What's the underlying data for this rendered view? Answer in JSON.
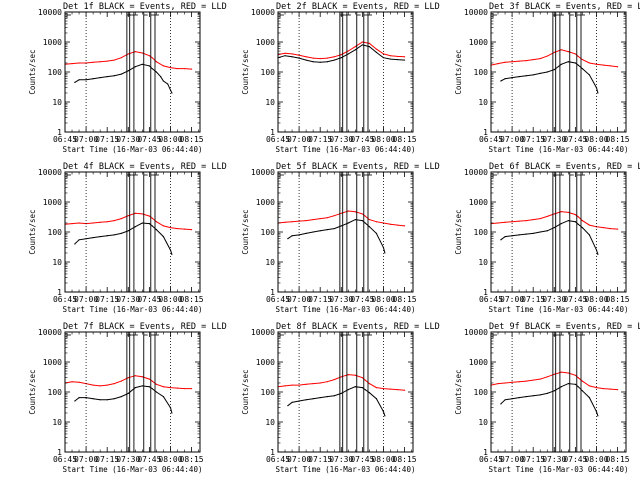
{
  "figure": {
    "xlabel": "Start Time (16-Mar-03 06:44:40)",
    "ylabel": "Counts/sec",
    "colors": {
      "events": "#000000",
      "lld": "#ff0000",
      "axes": "#000000"
    },
    "x_ticks": [
      "06:45",
      "07:00",
      "07:15",
      "07:30",
      "07:45",
      "08:00",
      "08:15"
    ],
    "y_ticks": [
      "1",
      "10",
      "100",
      "1000",
      "10000"
    ]
  },
  "chart_data": [
    {
      "type": "line",
      "panel": "Det 1f",
      "title": "Det 1f BLACK = Events, RED = LLD",
      "xlabel": "Start Time (16-Mar-03 06:44:40)",
      "ylabel": "Counts/sec",
      "xlim_min": [
        0,
        96
      ],
      "ylim": [
        1,
        10000
      ],
      "y_scale": "log",
      "series": [
        {
          "name": "Events",
          "color": "#000000",
          "x_min": [
            7,
            10,
            15,
            20,
            25,
            30,
            35,
            40,
            45,
            50,
            55,
            60,
            62,
            65,
            68,
            70,
            73,
            75,
            76
          ],
          "values": [
            45,
            55,
            55,
            60,
            65,
            70,
            75,
            85,
            110,
            150,
            180,
            160,
            130,
            100,
            70,
            50,
            40,
            25,
            20
          ]
        },
        {
          "name": "LLD",
          "color": "#ff0000",
          "x_min": [
            0,
            5,
            10,
            15,
            20,
            25,
            30,
            35,
            40,
            45,
            50,
            55,
            60,
            62,
            65,
            70,
            75,
            80,
            85,
            90
          ],
          "values": [
            180,
            190,
            200,
            200,
            210,
            220,
            230,
            250,
            300,
            400,
            480,
            430,
            350,
            300,
            220,
            160,
            140,
            130,
            130,
            125
          ]
        }
      ],
      "vlines_solid_min": [
        44,
        46,
        49,
        56,
        61,
        64
      ],
      "vlines_dotted_min": [
        15,
        75
      ]
    },
    {
      "type": "line",
      "panel": "Det 2f",
      "title": "Det 2f BLACK = Events, RED = LLD",
      "xlabel": "Start Time (16-Mar-03 06:44:40)",
      "ylabel": "Counts/sec",
      "xlim_min": [
        0,
        96
      ],
      "ylim": [
        1,
        10000
      ],
      "y_scale": "log",
      "series": [
        {
          "name": "Events",
          "color": "#000000",
          "x_min": [
            0,
            5,
            10,
            15,
            20,
            25,
            30,
            35,
            40,
            45,
            50,
            55,
            60,
            65,
            70,
            75,
            80,
            85,
            90
          ],
          "values": [
            300,
            350,
            320,
            290,
            250,
            220,
            210,
            220,
            250,
            300,
            400,
            550,
            800,
            700,
            450,
            300,
            270,
            260,
            250
          ]
        },
        {
          "name": "LLD",
          "color": "#ff0000",
          "x_min": [
            0,
            5,
            10,
            15,
            20,
            25,
            30,
            35,
            40,
            45,
            50,
            55,
            60,
            65,
            70,
            75,
            80,
            85,
            90
          ],
          "values": [
            380,
            420,
            400,
            360,
            320,
            290,
            280,
            290,
            320,
            380,
            500,
            700,
            1000,
            900,
            580,
            400,
            350,
            330,
            320
          ]
        }
      ],
      "vlines_solid_min": [
        44,
        46,
        49,
        56,
        61,
        64
      ],
      "vlines_dotted_min": [
        15,
        75
      ]
    },
    {
      "type": "line",
      "panel": "Det 3f",
      "title": "Det 3f BLACK = Events, RED = LLD",
      "xlabel": "Start Time (16-Mar-03 06:44:40)",
      "ylabel": "Counts/sec",
      "xlim_min": [
        0,
        96
      ],
      "ylim": [
        1,
        10000
      ],
      "y_scale": "log",
      "series": [
        {
          "name": "Events",
          "color": "#000000",
          "x_min": [
            7,
            10,
            15,
            20,
            25,
            30,
            35,
            40,
            45,
            50,
            55,
            60,
            62,
            65,
            70,
            75,
            76
          ],
          "values": [
            50,
            60,
            65,
            70,
            75,
            80,
            90,
            100,
            120,
            180,
            220,
            200,
            170,
            130,
            80,
            30,
            20
          ]
        },
        {
          "name": "LLD",
          "color": "#ff0000",
          "x_min": [
            0,
            5,
            10,
            15,
            20,
            25,
            30,
            35,
            40,
            45,
            50,
            55,
            60,
            62,
            65,
            70,
            75,
            80,
            85,
            90
          ],
          "values": [
            170,
            190,
            210,
            220,
            230,
            240,
            260,
            280,
            340,
            450,
            550,
            480,
            400,
            330,
            260,
            200,
            180,
            170,
            160,
            150
          ]
        }
      ],
      "vlines_solid_min": [
        44,
        46,
        49,
        56,
        61,
        64
      ],
      "vlines_dotted_min": [
        15,
        75
      ]
    },
    {
      "type": "line",
      "panel": "Det 4f",
      "title": "Det 4f BLACK = Events, RED = LLD",
      "xlabel": "Start Time (16-Mar-03 06:44:40)",
      "ylabel": "Counts/sec",
      "xlim_min": [
        0,
        96
      ],
      "ylim": [
        1,
        10000
      ],
      "y_scale": "log",
      "series": [
        {
          "name": "Events",
          "color": "#000000",
          "x_min": [
            7,
            10,
            15,
            20,
            25,
            30,
            35,
            40,
            45,
            50,
            55,
            60,
            62,
            65,
            70,
            75,
            76
          ],
          "values": [
            40,
            55,
            60,
            65,
            70,
            75,
            80,
            90,
            110,
            150,
            200,
            190,
            160,
            120,
            70,
            25,
            18
          ]
        },
        {
          "name": "LLD",
          "color": "#ff0000",
          "x_min": [
            0,
            5,
            10,
            15,
            20,
            25,
            30,
            35,
            40,
            45,
            50,
            55,
            60,
            62,
            65,
            70,
            75,
            80,
            85,
            90
          ],
          "values": [
            180,
            190,
            200,
            190,
            200,
            210,
            220,
            240,
            280,
            350,
            420,
            400,
            340,
            290,
            220,
            160,
            140,
            130,
            125,
            120
          ]
        }
      ],
      "vlines_solid_min": [
        44,
        46,
        49,
        56,
        61,
        64
      ],
      "vlines_dotted_min": [
        15,
        75
      ]
    },
    {
      "type": "line",
      "panel": "Det 5f",
      "title": "Det 5f BLACK = Events, RED = LLD",
      "xlabel": "Start Time (16-Mar-03 06:44:40)",
      "ylabel": "Counts/sec",
      "xlim_min": [
        0,
        96
      ],
      "ylim": [
        1,
        10000
      ],
      "y_scale": "log",
      "series": [
        {
          "name": "Events",
          "color": "#000000",
          "x_min": [
            7,
            10,
            15,
            20,
            25,
            30,
            35,
            40,
            45,
            50,
            55,
            60,
            62,
            65,
            70,
            75,
            76
          ],
          "values": [
            60,
            75,
            80,
            90,
            100,
            110,
            120,
            130,
            160,
            200,
            260,
            240,
            200,
            150,
            90,
            30,
            20
          ]
        },
        {
          "name": "LLD",
          "color": "#ff0000",
          "x_min": [
            0,
            5,
            10,
            15,
            20,
            25,
            30,
            35,
            40,
            45,
            50,
            55,
            60,
            62,
            65,
            70,
            75,
            80,
            85,
            90
          ],
          "values": [
            200,
            210,
            220,
            230,
            240,
            260,
            280,
            300,
            350,
            420,
            500,
            470,
            400,
            340,
            260,
            220,
            200,
            180,
            170,
            160
          ]
        }
      ],
      "vlines_solid_min": [
        44,
        46,
        49,
        56,
        61,
        64
      ],
      "vlines_dotted_min": [
        15,
        75
      ]
    },
    {
      "type": "line",
      "panel": "Det 6f",
      "title": "Det 6f BLACK = Events, RED = LLD",
      "xlabel": "Start Time (16-Mar-03 06:44:40)",
      "ylabel": "Counts/sec",
      "xlim_min": [
        0,
        96
      ],
      "ylim": [
        1,
        10000
      ],
      "y_scale": "log",
      "series": [
        {
          "name": "Events",
          "color": "#000000",
          "x_min": [
            7,
            10,
            15,
            20,
            25,
            30,
            35,
            40,
            45,
            50,
            55,
            60,
            62,
            65,
            70,
            75,
            76
          ],
          "values": [
            55,
            70,
            75,
            80,
            85,
            90,
            100,
            110,
            140,
            190,
            240,
            220,
            180,
            140,
            80,
            25,
            18
          ]
        },
        {
          "name": "LLD",
          "color": "#ff0000",
          "x_min": [
            0,
            5,
            10,
            15,
            20,
            25,
            30,
            35,
            40,
            45,
            50,
            55,
            60,
            62,
            65,
            70,
            75,
            80,
            85,
            90
          ],
          "values": [
            190,
            200,
            210,
            220,
            230,
            240,
            260,
            280,
            330,
            400,
            480,
            450,
            380,
            320,
            240,
            170,
            150,
            140,
            130,
            125
          ]
        }
      ],
      "vlines_solid_min": [
        44,
        46,
        49,
        56,
        61,
        64
      ],
      "vlines_dotted_min": [
        15,
        75
      ]
    },
    {
      "type": "line",
      "panel": "Det 7f",
      "title": "Det 7f BLACK = Events, RED = LLD",
      "xlabel": "Start Time (16-Mar-03 06:44:40)",
      "ylabel": "Counts/sec",
      "xlim_min": [
        0,
        96
      ],
      "ylim": [
        1,
        10000
      ],
      "y_scale": "log",
      "series": [
        {
          "name": "Events",
          "color": "#000000",
          "x_min": [
            7,
            10,
            15,
            20,
            25,
            30,
            35,
            40,
            45,
            50,
            55,
            60,
            62,
            65,
            70,
            75,
            76
          ],
          "values": [
            50,
            65,
            65,
            60,
            55,
            55,
            60,
            70,
            90,
            140,
            160,
            150,
            130,
            100,
            70,
            30,
            20
          ]
        },
        {
          "name": "LLD",
          "color": "#ff0000",
          "x_min": [
            0,
            5,
            10,
            15,
            20,
            25,
            30,
            35,
            40,
            45,
            50,
            55,
            60,
            62,
            65,
            70,
            75,
            80,
            85,
            90
          ],
          "values": [
            200,
            220,
            210,
            190,
            170,
            160,
            170,
            190,
            230,
            300,
            350,
            320,
            270,
            230,
            180,
            150,
            140,
            135,
            130,
            130
          ]
        }
      ],
      "vlines_solid_min": [
        44,
        46,
        49,
        56,
        61,
        64
      ],
      "vlines_dotted_min": [
        15,
        75
      ]
    },
    {
      "type": "line",
      "panel": "Det 8f",
      "title": "Det 8f BLACK = Events, RED = LLD",
      "xlabel": "Start Time (16-Mar-03 06:44:40)",
      "ylabel": "Counts/sec",
      "xlim_min": [
        0,
        96
      ],
      "ylim": [
        1,
        10000
      ],
      "y_scale": "log",
      "series": [
        {
          "name": "Events",
          "color": "#000000",
          "x_min": [
            7,
            10,
            15,
            20,
            25,
            30,
            35,
            40,
            45,
            50,
            55,
            60,
            62,
            65,
            70,
            75,
            76
          ],
          "values": [
            35,
            45,
            50,
            55,
            60,
            65,
            70,
            75,
            90,
            120,
            150,
            140,
            120,
            95,
            60,
            22,
            16
          ]
        },
        {
          "name": "LLD",
          "color": "#ff0000",
          "x_min": [
            0,
            5,
            10,
            15,
            20,
            25,
            30,
            35,
            40,
            45,
            50,
            55,
            60,
            62,
            65,
            70,
            75,
            80,
            85,
            90
          ],
          "values": [
            150,
            160,
            170,
            170,
            180,
            190,
            200,
            220,
            260,
            320,
            380,
            360,
            300,
            250,
            190,
            140,
            130,
            125,
            120,
            115
          ]
        }
      ],
      "vlines_solid_min": [
        44,
        46,
        49,
        56,
        61,
        64
      ],
      "vlines_dotted_min": [
        15,
        75
      ]
    },
    {
      "type": "line",
      "panel": "Det 9f",
      "title": "Det 9f BLACK = Events, RED = LLD",
      "xlabel": "Start Time (16-Mar-03 06:44:40)",
      "ylabel": "Counts/sec",
      "xlim_min": [
        0,
        96
      ],
      "ylim": [
        1,
        10000
      ],
      "y_scale": "log",
      "series": [
        {
          "name": "Events",
          "color": "#000000",
          "x_min": [
            7,
            10,
            15,
            20,
            25,
            30,
            35,
            40,
            45,
            50,
            55,
            60,
            62,
            65,
            70,
            75,
            76
          ],
          "values": [
            40,
            55,
            60,
            65,
            70,
            75,
            80,
            90,
            110,
            150,
            190,
            180,
            150,
            110,
            65,
            22,
            16
          ]
        },
        {
          "name": "LLD",
          "color": "#ff0000",
          "x_min": [
            0,
            5,
            10,
            15,
            20,
            25,
            30,
            35,
            40,
            45,
            50,
            55,
            60,
            62,
            65,
            70,
            75,
            80,
            85,
            90
          ],
          "values": [
            170,
            190,
            200,
            210,
            220,
            230,
            250,
            270,
            320,
            390,
            460,
            430,
            360,
            300,
            230,
            160,
            140,
            130,
            125,
            120
          ]
        }
      ],
      "vlines_solid_min": [
        44,
        46,
        49,
        56,
        61,
        64
      ],
      "vlines_dotted_min": [
        15,
        75
      ]
    }
  ]
}
